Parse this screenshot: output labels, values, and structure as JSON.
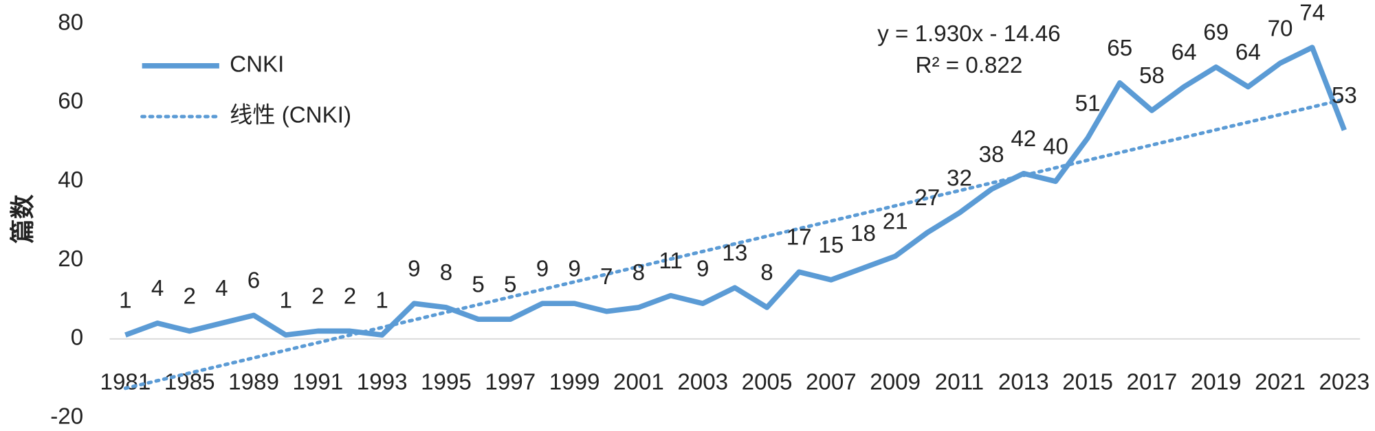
{
  "chart_data": {
    "type": "line",
    "y_label": "篇数",
    "categories": [
      "1981",
      null,
      "1985",
      null,
      "1989",
      null,
      "1991",
      null,
      "1993",
      null,
      "1995",
      null,
      "1997",
      null,
      "1999",
      null,
      "2001",
      null,
      "2003",
      null,
      "2005",
      null,
      "2007",
      null,
      "2009",
      null,
      "2011",
      null,
      "2013",
      null,
      "2015",
      null,
      "2017",
      null,
      "2019",
      null,
      "2021",
      null,
      "2023"
    ],
    "series": [
      {
        "name": "CNKI",
        "color": "#5b9bd5",
        "values": [
          1,
          4,
          2,
          4,
          6,
          1,
          2,
          2,
          1,
          9,
          8,
          5,
          5,
          9,
          9,
          7,
          8,
          11,
          9,
          13,
          8,
          17,
          15,
          18,
          21,
          27,
          32,
          38,
          42,
          40,
          51,
          65,
          58,
          64,
          69,
          64,
          70,
          74,
          53
        ]
      }
    ],
    "trendline": {
      "name": "线性 (CNKI)",
      "color": "#5b9bd5",
      "slope": 1.93,
      "intercept": -14.46,
      "equation": "y = 1.930x - 14.46",
      "r_squared": "R² = 0.822"
    },
    "ylim": [
      -20,
      80
    ],
    "yticks": [
      -20,
      0,
      20,
      40,
      60,
      80
    ],
    "legend": "upper left",
    "data_labels": true
  }
}
